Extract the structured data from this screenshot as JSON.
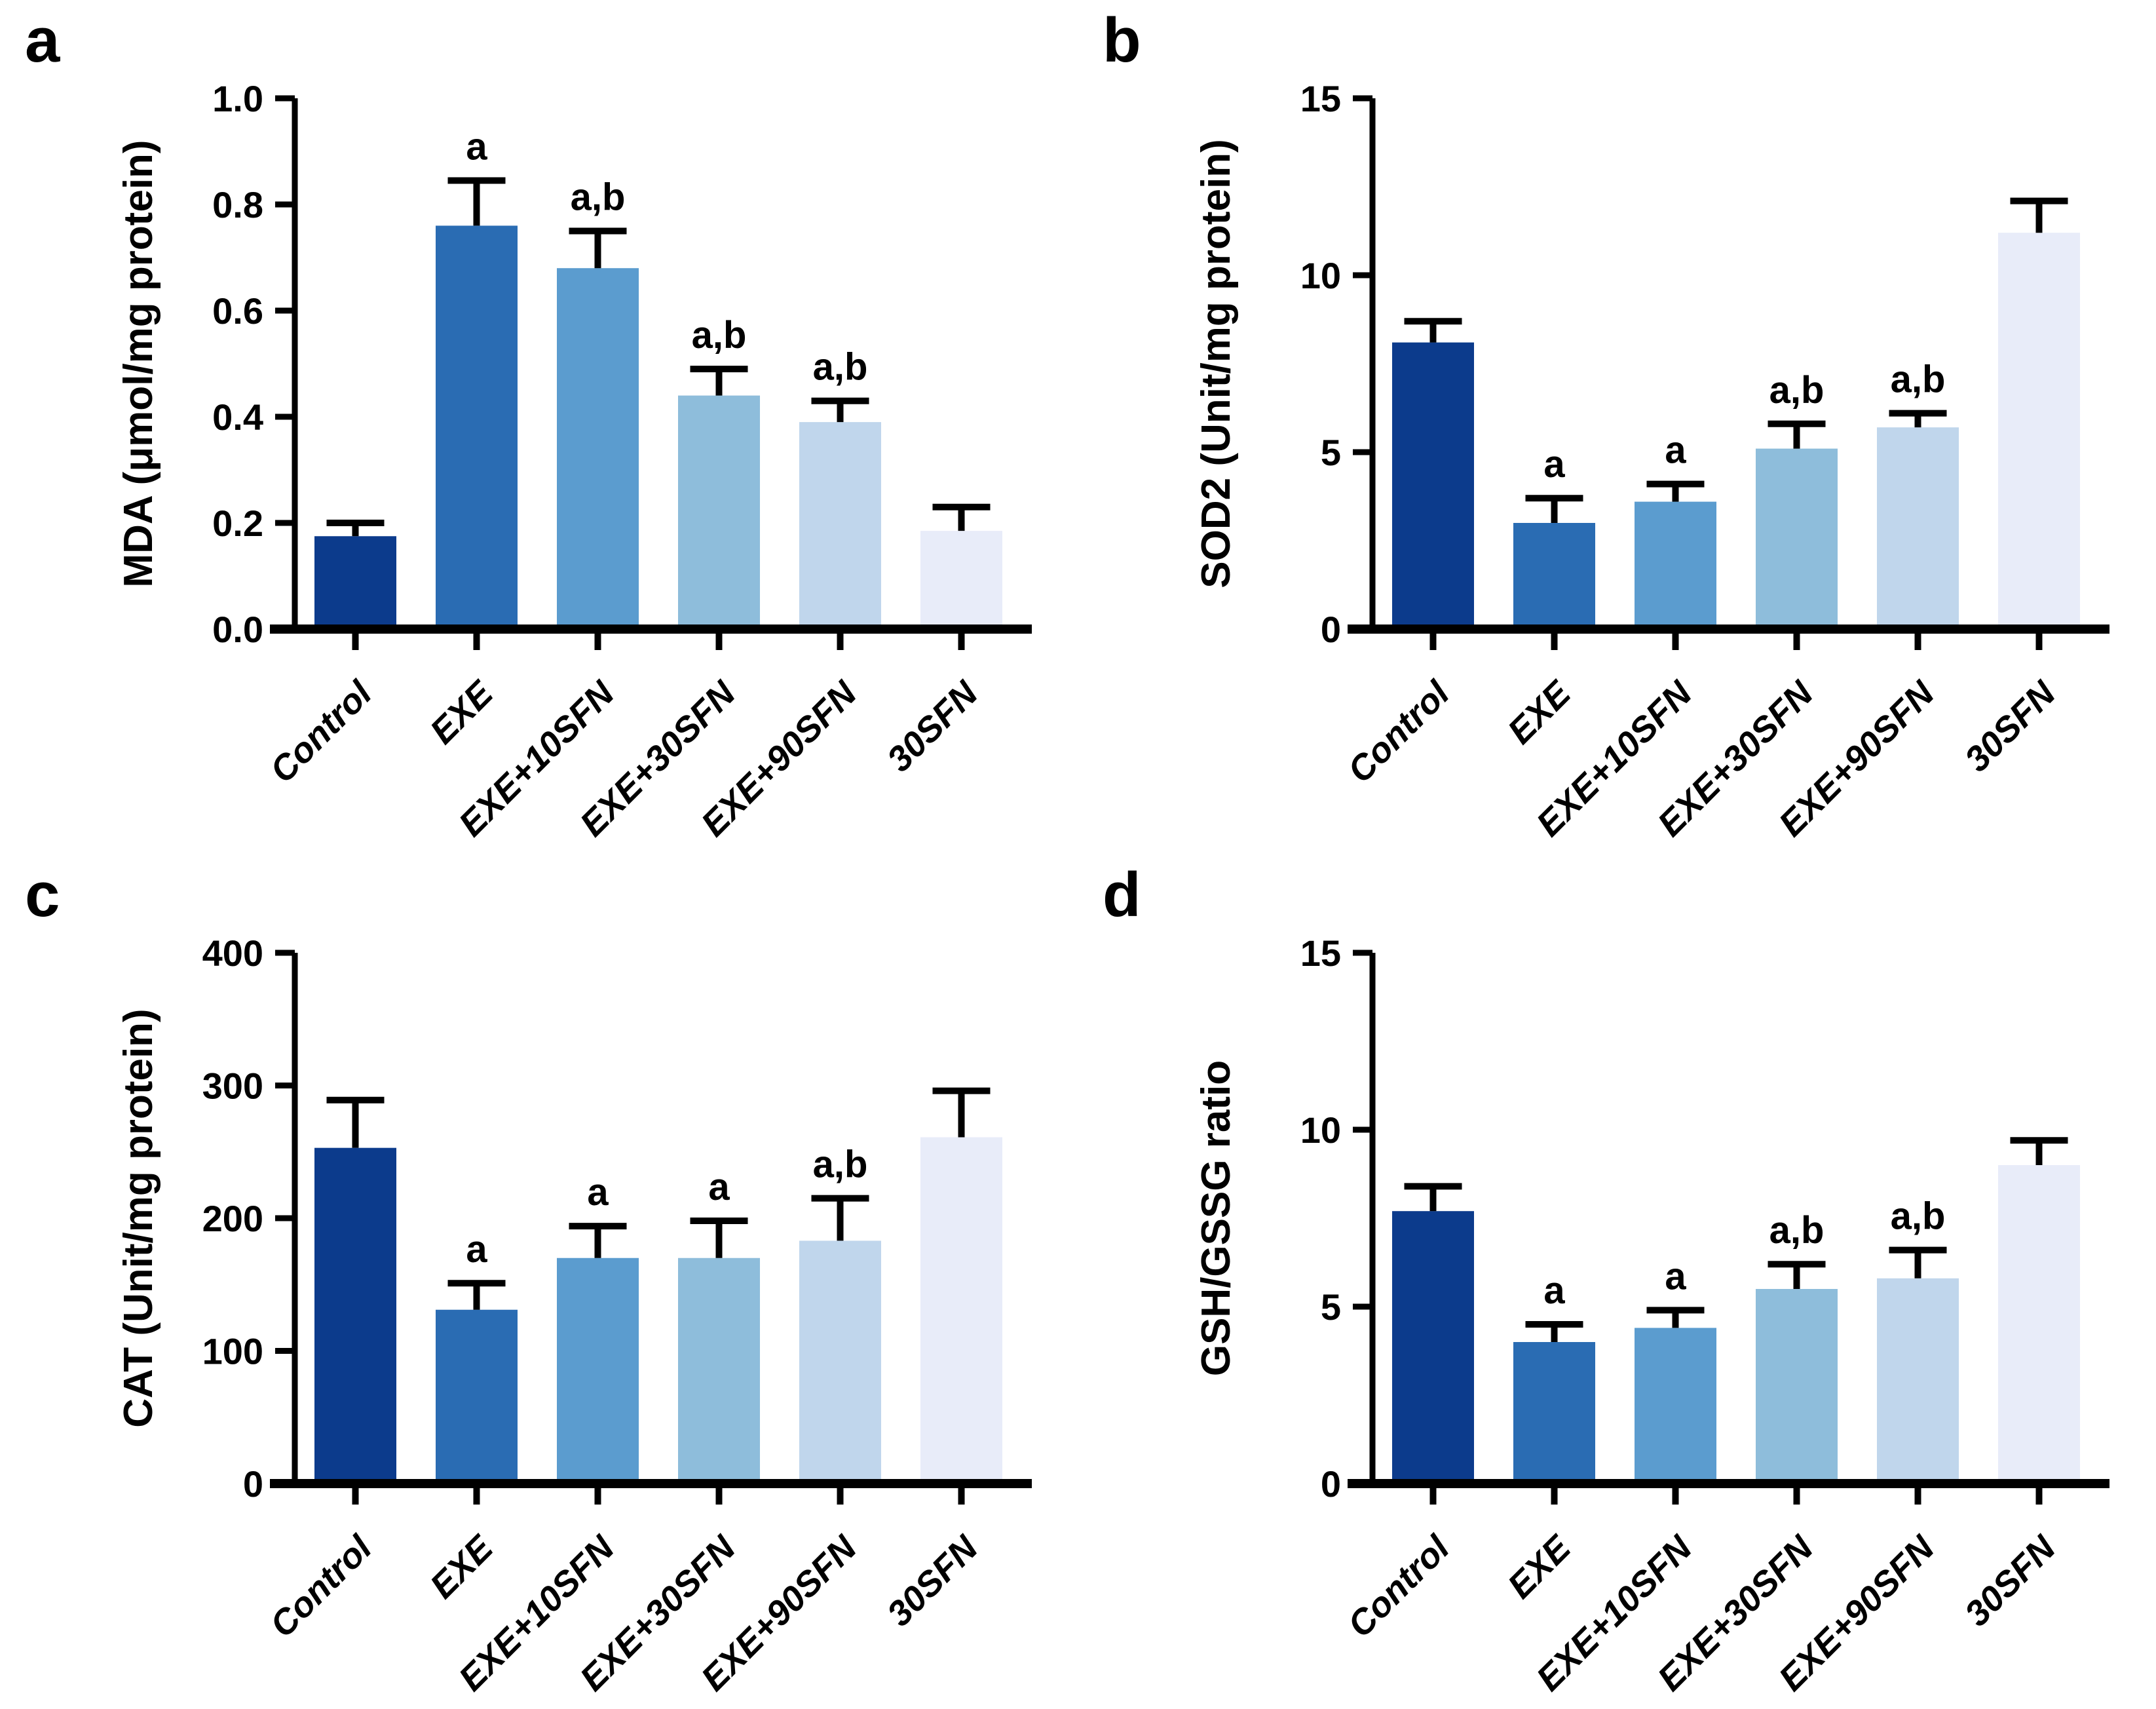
{
  "figure": {
    "background": "#ffffff",
    "axis_color": "#000000",
    "categories": [
      "Control",
      "EXE",
      "EXE+10SFN",
      "EXE+30SFN",
      "EXE+90SFN",
      "30SFN"
    ],
    "bar_colors": [
      "#0c3b8c",
      "#2a6cb3",
      "#5b9ccf",
      "#8ebddb",
      "#c0d6ec",
      "#e8ecf9"
    ]
  },
  "chart_data": [
    {
      "panel_label": "a",
      "type": "bar",
      "title": "",
      "xlabel": "",
      "ylabel": "MDA (μmol/mg protein)",
      "ylim": [
        0,
        1.0
      ],
      "yticks": [
        0.0,
        0.2,
        0.4,
        0.6,
        0.8,
        1.0
      ],
      "ytick_labels": [
        "0.0",
        "0.2",
        "0.4",
        "0.6",
        "0.8",
        "1.0"
      ],
      "categories": [
        "Control",
        "EXE",
        "EXE+10SFN",
        "EXE+30SFN",
        "EXE+90SFN",
        "30SFN"
      ],
      "values": [
        0.175,
        0.76,
        0.68,
        0.44,
        0.39,
        0.185
      ],
      "errors": [
        0.025,
        0.085,
        0.07,
        0.05,
        0.04,
        0.045
      ],
      "sig_labels": [
        "",
        "a",
        "a,b",
        "a,b",
        "a,b",
        ""
      ],
      "grid": "off",
      "legend": "none"
    },
    {
      "panel_label": "b",
      "type": "bar",
      "title": "",
      "xlabel": "",
      "ylabel": "SOD2 (Unit/mg protein)",
      "ylim": [
        0,
        15
      ],
      "yticks": [
        0,
        5,
        10,
        15
      ],
      "ytick_labels": [
        "0",
        "5",
        "10",
        "15"
      ],
      "categories": [
        "Control",
        "EXE",
        "EXE+10SFN",
        "EXE+30SFN",
        "EXE+90SFN",
        "30SFN"
      ],
      "values": [
        8.1,
        3.0,
        3.6,
        5.1,
        5.7,
        11.2
      ],
      "errors": [
        0.6,
        0.7,
        0.5,
        0.7,
        0.4,
        0.9
      ],
      "sig_labels": [
        "",
        "a",
        "a",
        "a,b",
        "a,b",
        ""
      ],
      "grid": "off",
      "legend": "none"
    },
    {
      "panel_label": "c",
      "type": "bar",
      "title": "",
      "xlabel": "",
      "ylabel": "CAT  (Unit/mg protein)",
      "ylim": [
        0,
        400
      ],
      "yticks": [
        0,
        100,
        200,
        300,
        400
      ],
      "ytick_labels": [
        "0",
        "100",
        "200",
        "300",
        "400"
      ],
      "categories": [
        "Control",
        "EXE",
        "EXE+10SFN",
        "EXE+30SFN",
        "EXE+90SFN",
        "30SFN"
      ],
      "values": [
        253,
        131,
        170,
        170,
        183,
        261
      ],
      "errors": [
        36,
        20,
        24,
        28,
        32,
        35
      ],
      "sig_labels": [
        "",
        "a",
        "a",
        "a",
        "a,b",
        ""
      ],
      "grid": "off",
      "legend": "none"
    },
    {
      "panel_label": "d",
      "type": "bar",
      "title": "",
      "xlabel": "",
      "ylabel": "GSH/GSSG ratio",
      "ylim": [
        0,
        15
      ],
      "yticks": [
        0,
        5,
        10,
        15
      ],
      "ytick_labels": [
        "0",
        "5",
        "10",
        "15"
      ],
      "categories": [
        "Control",
        "EXE",
        "EXE+10SFN",
        "EXE+30SFN",
        "EXE+90SFN",
        "30SFN"
      ],
      "values": [
        7.7,
        4.0,
        4.4,
        5.5,
        5.8,
        9.0
      ],
      "errors": [
        0.7,
        0.5,
        0.5,
        0.7,
        0.8,
        0.7
      ],
      "sig_labels": [
        "",
        "a",
        "a",
        "a,b",
        "a,b",
        ""
      ],
      "grid": "off",
      "legend": "none"
    }
  ]
}
